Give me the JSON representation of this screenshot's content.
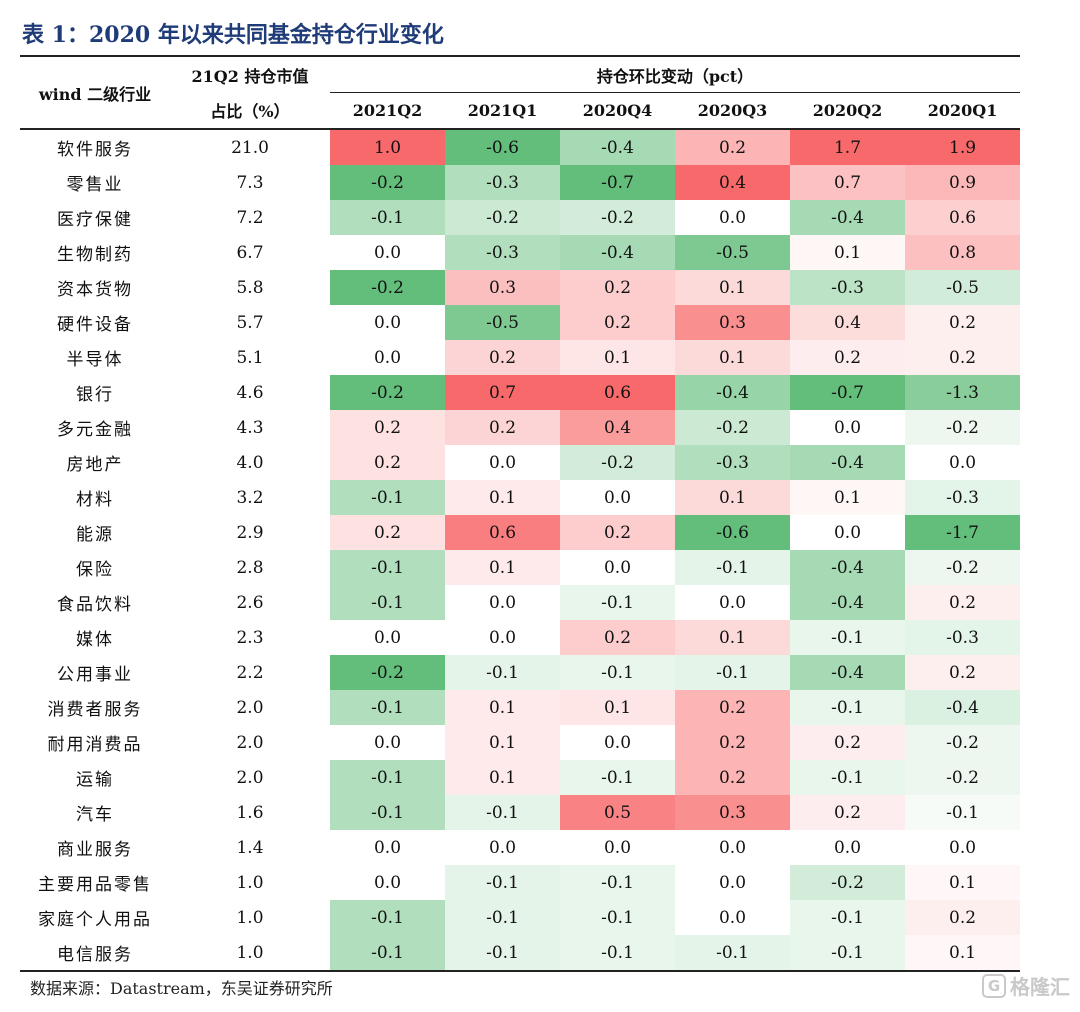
{
  "title": "表 1：2020 年以来共同基金持仓行业变化",
  "header": {
    "industry": "wind 二级行业",
    "share_line1": "21Q2 持仓市值",
    "share_line2": "占比（%）",
    "change_group": "持仓环比变动（pct）",
    "periods": [
      "2021Q2",
      "2021Q1",
      "2020Q4",
      "2020Q3",
      "2020Q2",
      "2020Q1"
    ]
  },
  "colors": {
    "positive": "#f8696b",
    "negative": "#63be7b",
    "neutral": "#ffffff",
    "title": "#1f3b78"
  },
  "rows": [
    {
      "industry": "软件服务",
      "share": "21.0",
      "changes": [
        "1.0",
        "-0.6",
        "-0.4",
        "0.2",
        "1.7",
        "1.9"
      ]
    },
    {
      "industry": "零售业",
      "share": "7.3",
      "changes": [
        "-0.2",
        "-0.3",
        "-0.7",
        "0.4",
        "0.7",
        "0.9"
      ]
    },
    {
      "industry": "医疗保健",
      "share": "7.2",
      "changes": [
        "-0.1",
        "-0.2",
        "-0.2",
        "0.0",
        "-0.4",
        "0.6"
      ]
    },
    {
      "industry": "生物制药",
      "share": "6.7",
      "changes": [
        "0.0",
        "-0.3",
        "-0.4",
        "-0.5",
        "0.1",
        "0.8"
      ]
    },
    {
      "industry": "资本货物",
      "share": "5.8",
      "changes": [
        "-0.2",
        "0.3",
        "0.2",
        "0.1",
        "-0.3",
        "-0.5"
      ]
    },
    {
      "industry": "硬件设备",
      "share": "5.7",
      "changes": [
        "0.0",
        "-0.5",
        "0.2",
        "0.3",
        "0.4",
        "0.2"
      ]
    },
    {
      "industry": "半导体",
      "share": "5.1",
      "changes": [
        "0.0",
        "0.2",
        "0.1",
        "0.1",
        "0.2",
        "0.2"
      ]
    },
    {
      "industry": "银行",
      "share": "4.6",
      "changes": [
        "-0.2",
        "0.7",
        "0.6",
        "-0.4",
        "-0.7",
        "-1.3"
      ]
    },
    {
      "industry": "多元金融",
      "share": "4.3",
      "changes": [
        "0.2",
        "0.2",
        "0.4",
        "-0.2",
        "0.0",
        "-0.2"
      ]
    },
    {
      "industry": "房地产",
      "share": "4.0",
      "changes": [
        "0.2",
        "0.0",
        "-0.2",
        "-0.3",
        "-0.4",
        "0.0"
      ]
    },
    {
      "industry": "材料",
      "share": "3.2",
      "changes": [
        "-0.1",
        "0.1",
        "0.0",
        "0.1",
        "0.1",
        "-0.3"
      ]
    },
    {
      "industry": "能源",
      "share": "2.9",
      "changes": [
        "0.2",
        "0.6",
        "0.2",
        "-0.6",
        "0.0",
        "-1.7"
      ]
    },
    {
      "industry": "保险",
      "share": "2.8",
      "changes": [
        "-0.1",
        "0.1",
        "0.0",
        "-0.1",
        "-0.4",
        "-0.2"
      ]
    },
    {
      "industry": "食品饮料",
      "share": "2.6",
      "changes": [
        "-0.1",
        "0.0",
        "-0.1",
        "0.0",
        "-0.4",
        "0.2"
      ]
    },
    {
      "industry": "媒体",
      "share": "2.3",
      "changes": [
        "0.0",
        "0.0",
        "0.2",
        "0.1",
        "-0.1",
        "-0.3"
      ]
    },
    {
      "industry": "公用事业",
      "share": "2.2",
      "changes": [
        "-0.2",
        "-0.1",
        "-0.1",
        "-0.1",
        "-0.4",
        "0.2"
      ]
    },
    {
      "industry": "消费者服务",
      "share": "2.0",
      "changes": [
        "-0.1",
        "0.1",
        "0.1",
        "0.2",
        "-0.1",
        "-0.4"
      ]
    },
    {
      "industry": "耐用消费品",
      "share": "2.0",
      "changes": [
        "0.0",
        "0.1",
        "0.0",
        "0.2",
        "0.2",
        "-0.2"
      ]
    },
    {
      "industry": "运输",
      "share": "2.0",
      "changes": [
        "-0.1",
        "0.1",
        "-0.1",
        "0.2",
        "-0.1",
        "-0.2"
      ]
    },
    {
      "industry": "汽车",
      "share": "1.6",
      "changes": [
        "-0.1",
        "-0.1",
        "0.5",
        "0.3",
        "0.2",
        "-0.1"
      ]
    },
    {
      "industry": "商业服务",
      "share": "1.4",
      "changes": [
        "0.0",
        "0.0",
        "0.0",
        "0.0",
        "0.0",
        "0.0"
      ]
    },
    {
      "industry": "主要用品零售",
      "share": "1.0",
      "changes": [
        "0.0",
        "-0.1",
        "-0.1",
        "0.0",
        "-0.2",
        "0.1"
      ]
    },
    {
      "industry": "家庭个人用品",
      "share": "1.0",
      "changes": [
        "-0.1",
        "-0.1",
        "-0.1",
        "0.0",
        "-0.1",
        "0.2"
      ]
    },
    {
      "industry": "电信服务",
      "share": "1.0",
      "changes": [
        "-0.1",
        "-0.1",
        "-0.1",
        "-0.1",
        "-0.1",
        "0.1"
      ]
    }
  ],
  "source": "数据来源：Datastream，东吴证券研究所",
  "watermark": {
    "icon_letter": "G",
    "text": "格隆汇",
    "icon": "gelonghui-logo-icon"
  }
}
